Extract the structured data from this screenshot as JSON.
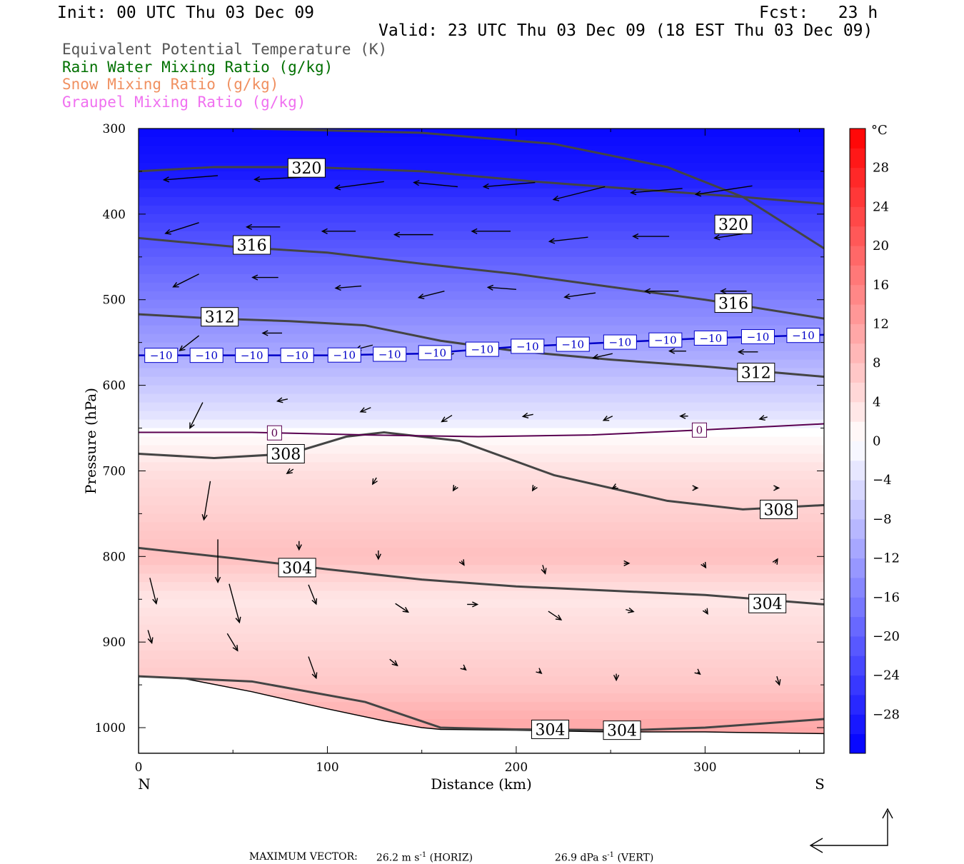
{
  "header": {
    "init": "Init: 00 UTC Thu 03 Dec 09",
    "fcst": "Fcst:   23 h",
    "valid": "Valid: 23 UTC Thu 03 Dec 09 (18 EST Thu 03 Dec 09)"
  },
  "legend": [
    {
      "label": "Equivalent Potential Temperature (K)",
      "color": "#555555"
    },
    {
      "label": "Rain Water Mixing Ratio (g/kg)",
      "color": "#007000"
    },
    {
      "label": "Snow Mixing Ratio (g/kg)",
      "color": "#f09060"
    },
    {
      "label": "Graupel Mixing Ratio (g/kg)",
      "color": "#f070f0"
    }
  ],
  "footer": {
    "max_vector_label": "MAXIMUM VECTOR:",
    "horiz_value": "26.2 m s",
    "horiz_suffix": " (HORIZ)",
    "vert_value": "26.9 dPa s",
    "vert_suffix": " (VERT)",
    "exponent": "-1"
  },
  "chart_data": {
    "type": "heatmap",
    "xlabel": "Distance (km)",
    "ylabel": "Pressure (hPa)",
    "xlim": [
      0,
      363
    ],
    "ylim": [
      1030,
      300
    ],
    "x_ticks": [
      "0",
      "100",
      "200",
      "300"
    ],
    "y_ticks": [
      "300",
      "400",
      "500",
      "600",
      "700",
      "800",
      "900",
      "1000"
    ],
    "x_tick_values": [
      0,
      100,
      200,
      300
    ],
    "y_tick_values": [
      300,
      400,
      500,
      600,
      700,
      800,
      900,
      1000
    ],
    "left_end_label": "N",
    "right_end_label": "S",
    "colorbar": {
      "unit": "°C",
      "labels": [
        "28",
        "24",
        "20",
        "16",
        "12",
        "8",
        "4",
        "0",
        "−4",
        "−8",
        "−12",
        "−16",
        "−20",
        "−24",
        "−28"
      ],
      "values": [
        28,
        24,
        20,
        16,
        12,
        8,
        4,
        0,
        -4,
        -8,
        -12,
        -16,
        -20,
        -24,
        -28
      ],
      "range": [
        -32,
        32
      ],
      "cold_color": "#0000ff",
      "warm_color": "#ff0000"
    },
    "temperature_profile": {
      "pressure": [
        300,
        350,
        400,
        450,
        500,
        550,
        600,
        640,
        655,
        700,
        750,
        800,
        850,
        900,
        950,
        1000
      ],
      "temperature": [
        -31,
        -29,
        -24,
        -20,
        -16,
        -12,
        -7,
        -3,
        0,
        4,
        6,
        8,
        3,
        5,
        7,
        11
      ]
    },
    "zero_isotherm": {
      "x": [
        0,
        60,
        120,
        180,
        240,
        300,
        363
      ],
      "p": [
        655,
        655,
        658,
        660,
        658,
        652,
        645
      ],
      "label": "0",
      "label_x": [
        72,
        297
      ]
    },
    "minus10_isotherm": {
      "x": [
        0,
        50,
        100,
        150,
        200,
        250,
        300,
        363
      ],
      "p": [
        565,
        565,
        565,
        563,
        555,
        550,
        545,
        541
      ],
      "label": "−10",
      "label_x": [
        12,
        36,
        60,
        84,
        109,
        133,
        157,
        182,
        206,
        230,
        255,
        279,
        303,
        328,
        352
      ]
    },
    "theta_e_contours": [
      {
        "value": "320",
        "x": [
          0,
          40,
          90,
          150,
          210,
          270,
          320,
          363
        ],
        "p": [
          350,
          345,
          345,
          350,
          362,
          372,
          380,
          388
        ]
      },
      {
        "value": "320",
        "x": [
          60,
          150,
          220,
          280,
          320,
          363
        ],
        "p": [
          300,
          305,
          318,
          345,
          380,
          440
        ]
      },
      {
        "value": "316",
        "x": [
          0,
          50,
          100,
          150,
          200,
          250,
          300,
          363
        ],
        "p": [
          428,
          438,
          445,
          458,
          470,
          485,
          500,
          522
        ]
      },
      {
        "value": "312",
        "x": [
          0,
          40,
          80,
          120,
          160,
          200,
          250,
          300,
          363
        ],
        "p": [
          517,
          522,
          525,
          530,
          548,
          560,
          570,
          578,
          590
        ]
      },
      {
        "value": "308",
        "x": [
          0,
          40,
          80,
          110,
          130,
          170,
          220,
          280,
          320,
          363
        ],
        "p": [
          680,
          685,
          680,
          660,
          655,
          665,
          705,
          735,
          745,
          740
        ]
      },
      {
        "value": "304",
        "x": [
          0,
          50,
          100,
          150,
          200,
          250,
          300,
          363
        ],
        "p": [
          790,
          802,
          815,
          827,
          835,
          840,
          845,
          856
        ]
      },
      {
        "value": "304",
        "x": [
          0,
          60,
          120,
          160,
          200,
          260,
          300,
          363
        ],
        "p": [
          940,
          946,
          970,
          1000,
          1002,
          1003,
          1000,
          990
        ]
      }
    ],
    "contour_labels": [
      {
        "text": "320",
        "x": 89,
        "p": 346
      },
      {
        "text": "320",
        "x": 315,
        "p": 412
      },
      {
        "text": "316",
        "x": 60,
        "p": 436
      },
      {
        "text": "316",
        "x": 315,
        "p": 504
      },
      {
        "text": "312",
        "x": 43,
        "p": 520
      },
      {
        "text": "312",
        "x": 327,
        "p": 585
      },
      {
        "text": "308",
        "x": 78,
        "p": 680
      },
      {
        "text": "308",
        "x": 339,
        "p": 745
      },
      {
        "text": "304",
        "x": 84,
        "p": 813
      },
      {
        "text": "304",
        "x": 333,
        "p": 855
      },
      {
        "text": "304",
        "x": 218,
        "p": 1002
      },
      {
        "text": "304",
        "x": 256,
        "p": 1003
      }
    ],
    "terrain": {
      "x": [
        0,
        25,
        60,
        100,
        130,
        150,
        160,
        200,
        250,
        300,
        363
      ],
      "p": [
        940,
        943,
        958,
        978,
        992,
        1000,
        1002,
        1003,
        1005,
        1005,
        1007
      ]
    },
    "wind_vectors": [
      {
        "x": 42,
        "p": 355,
        "u": -42,
        "w": 2
      },
      {
        "x": 86,
        "p": 357,
        "u": -36,
        "w": 1
      },
      {
        "x": 130,
        "p": 362,
        "u": -38,
        "w": 3
      },
      {
        "x": 169,
        "p": 368,
        "u": -34,
        "w": -2
      },
      {
        "x": 210,
        "p": 363,
        "u": -40,
        "w": 2
      },
      {
        "x": 247,
        "p": 368,
        "u": -40,
        "w": 6
      },
      {
        "x": 288,
        "p": 370,
        "u": -40,
        "w": 2
      },
      {
        "x": 325,
        "p": 367,
        "u": -44,
        "w": 4
      },
      {
        "x": 32,
        "p": 410,
        "u": -26,
        "w": 5
      },
      {
        "x": 75,
        "p": 415,
        "u": -26,
        "w": 0
      },
      {
        "x": 115,
        "p": 420,
        "u": -26,
        "w": 0
      },
      {
        "x": 156,
        "p": 424,
        "u": -30,
        "w": 0
      },
      {
        "x": 197,
        "p": 420,
        "u": -30,
        "w": 0
      },
      {
        "x": 238,
        "p": 427,
        "u": -30,
        "w": 2
      },
      {
        "x": 281,
        "p": 426,
        "u": -28,
        "w": 0
      },
      {
        "x": 320,
        "p": 423,
        "u": -22,
        "w": 2
      },
      {
        "x": 32,
        "p": 470,
        "u": -20,
        "w": 6
      },
      {
        "x": 74,
        "p": 474,
        "u": -20,
        "w": 0
      },
      {
        "x": 118,
        "p": 484,
        "u": -20,
        "w": 1
      },
      {
        "x": 162,
        "p": 490,
        "u": -20,
        "w": 3
      },
      {
        "x": 200,
        "p": 488,
        "u": -22,
        "w": -1
      },
      {
        "x": 242,
        "p": 492,
        "u": -24,
        "w": 2
      },
      {
        "x": 286,
        "p": 490,
        "u": -26,
        "w": 0
      },
      {
        "x": 322,
        "p": 490,
        "u": -20,
        "w": 0
      },
      {
        "x": 32,
        "p": 542,
        "u": -15,
        "w": 7
      },
      {
        "x": 76,
        "p": 539,
        "u": -15,
        "w": 0
      },
      {
        "x": 124,
        "p": 553,
        "u": -13,
        "w": 2
      },
      {
        "x": 167,
        "p": 563,
        "u": -13,
        "w": 2
      },
      {
        "x": 210,
        "p": 557,
        "u": -17,
        "w": 0
      },
      {
        "x": 251,
        "p": 563,
        "u": -15,
        "w": 2
      },
      {
        "x": 290,
        "p": 560,
        "u": -13,
        "w": 0
      },
      {
        "x": 328,
        "p": 561,
        "u": -15,
        "w": 0
      },
      {
        "x": 34,
        "p": 620,
        "u": -10,
        "w": 12
      },
      {
        "x": 79,
        "p": 616,
        "u": -8,
        "w": 1
      },
      {
        "x": 123,
        "p": 626,
        "u": -8,
        "w": 2
      },
      {
        "x": 166,
        "p": 635,
        "u": -8,
        "w": 3
      },
      {
        "x": 209,
        "p": 634,
        "u": -8,
        "w": 1
      },
      {
        "x": 251,
        "p": 636,
        "u": -7,
        "w": 2
      },
      {
        "x": 291,
        "p": 636,
        "u": -6,
        "w": 0
      },
      {
        "x": 333,
        "p": 637,
        "u": -6,
        "w": 1
      },
      {
        "x": 38,
        "p": 712,
        "u": -5,
        "w": 18
      },
      {
        "x": 82,
        "p": 698,
        "u": -5,
        "w": 2
      },
      {
        "x": 126,
        "p": 708,
        "u": -3,
        "w": 3
      },
      {
        "x": 168,
        "p": 718,
        "u": -2,
        "w": 2
      },
      {
        "x": 210,
        "p": 718,
        "u": -2,
        "w": 2
      },
      {
        "x": 253,
        "p": 718,
        "u": -3,
        "w": 1
      },
      {
        "x": 294,
        "p": 720,
        "u": 3,
        "w": 0
      },
      {
        "x": 337,
        "p": 720,
        "u": 3,
        "w": 0
      },
      {
        "x": 42,
        "p": 780,
        "u": 0,
        "w": 20
      },
      {
        "x": 85,
        "p": 782,
        "u": 0,
        "w": 4
      },
      {
        "x": 127,
        "p": 793,
        "u": 0,
        "w": 4
      },
      {
        "x": 171,
        "p": 805,
        "u": 2,
        "w": 2
      },
      {
        "x": 214,
        "p": 810,
        "u": 2,
        "w": 4
      },
      {
        "x": 257,
        "p": 808,
        "u": 4,
        "w": 0
      },
      {
        "x": 299,
        "p": 808,
        "u": 2,
        "w": 2
      },
      {
        "x": 337,
        "p": 808,
        "u": 2,
        "w": -2
      },
      {
        "x": 48,
        "p": 832,
        "u": 8,
        "w": 18
      },
      {
        "x": 90,
        "p": 833,
        "u": 6,
        "w": 9
      },
      {
        "x": 136,
        "p": 855,
        "u": 10,
        "w": 4
      },
      {
        "x": 174,
        "p": 856,
        "u": 8,
        "w": 0
      },
      {
        "x": 217,
        "p": 864,
        "u": 10,
        "w": 4
      },
      {
        "x": 258,
        "p": 862,
        "u": 6,
        "w": 1
      },
      {
        "x": 300,
        "p": 862,
        "u": 2,
        "w": 2
      },
      {
        "x": 6,
        "p": 825,
        "u": 5,
        "w": 12
      },
      {
        "x": 47,
        "p": 890,
        "u": 8,
        "w": 8
      },
      {
        "x": 90,
        "p": 917,
        "u": 6,
        "w": 10
      },
      {
        "x": 133,
        "p": 920,
        "u": 6,
        "w": 3
      },
      {
        "x": 172,
        "p": 930,
        "u": 2,
        "w": 1
      },
      {
        "x": 212,
        "p": 934,
        "u": 2,
        "w": 1
      },
      {
        "x": 253,
        "p": 937,
        "u": 0,
        "w": 3
      },
      {
        "x": 296,
        "p": 935,
        "u": 2,
        "w": 1
      },
      {
        "x": 338,
        "p": 940,
        "u": 2,
        "w": 4
      },
      {
        "x": 5,
        "p": 886,
        "u": 3,
        "w": 6
      }
    ]
  }
}
